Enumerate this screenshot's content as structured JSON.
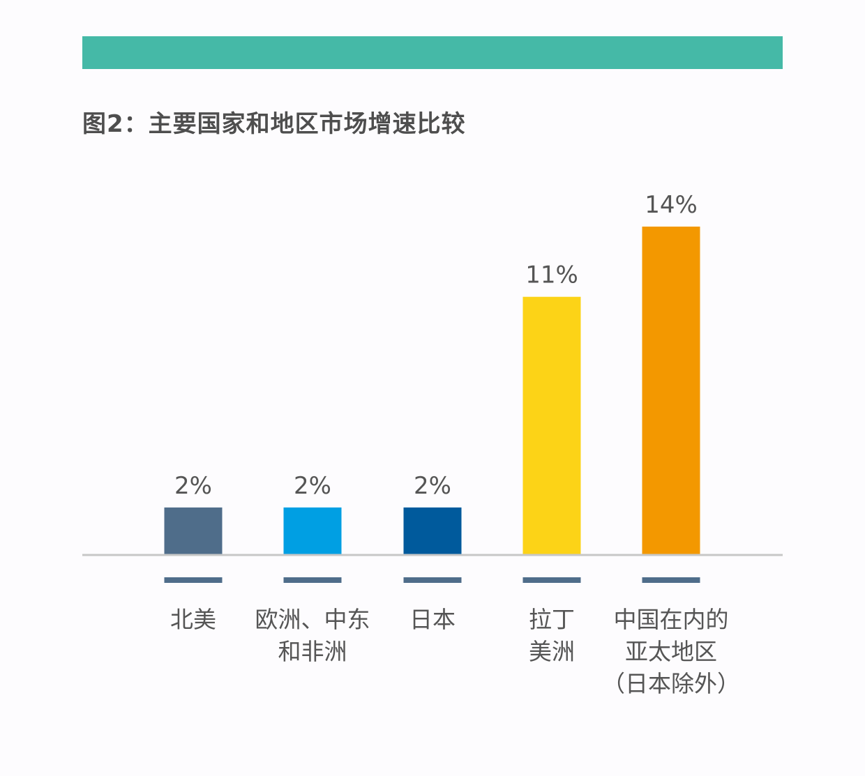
{
  "header": {
    "bar_color": "#45b9a7"
  },
  "title": "图2：主要国家和地区市场增速比较",
  "chart_data": {
    "type": "bar",
    "title": "图2：主要国家和地区市场增速比较",
    "categories": [
      [
        "北美"
      ],
      [
        "欧洲、中东",
        "和非洲"
      ],
      [
        "日本"
      ],
      [
        "拉丁",
        "美洲"
      ],
      [
        "中国在内的",
        "亚太地区",
        "（日本除外）"
      ]
    ],
    "values": [
      2,
      2,
      2,
      11,
      14
    ],
    "value_labels": [
      "2%",
      "2%",
      "2%",
      "11%",
      "14%"
    ],
    "colors": [
      "#4f6d8a",
      "#009fe3",
      "#005a9c",
      "#fcd317",
      "#f39800"
    ],
    "marker_color": "#4f6d8a",
    "axis_color": "#c7c7c7",
    "ylim": [
      0,
      14
    ],
    "grid": false,
    "legend": "none",
    "xlabel": "",
    "ylabel": ""
  }
}
